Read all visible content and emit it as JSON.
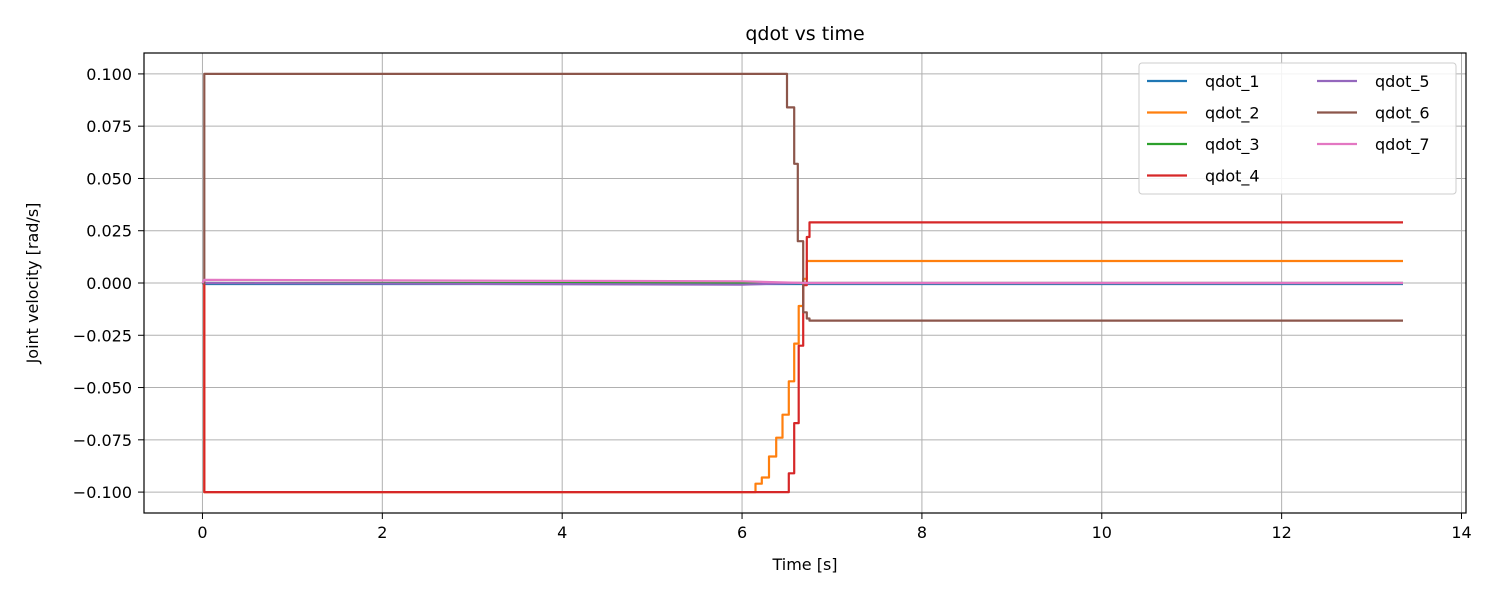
{
  "chart_data": {
    "type": "line",
    "title": "qdot vs time",
    "xlabel": "Time [s]",
    "ylabel": "Joint velocity [rad/s]",
    "xlim": [
      -0.65,
      14.05
    ],
    "ylim": [
      -0.11,
      0.11
    ],
    "xticks": [
      0,
      2,
      4,
      6,
      8,
      10,
      12,
      14
    ],
    "yticks": [
      -0.1,
      -0.075,
      -0.05,
      -0.025,
      0.0,
      0.025,
      0.05,
      0.075,
      0.1
    ],
    "ytick_labels": [
      "−0.100",
      "−0.075",
      "−0.050",
      "−0.025",
      "0.000",
      "0.025",
      "0.050",
      "0.075",
      "0.100"
    ],
    "grid": true,
    "legend": {
      "placement": "top-right",
      "columns": 2
    },
    "series": [
      {
        "name": "qdot_1",
        "color": "#1f77b4",
        "x": [
          0,
          0.02,
          13.35
        ],
        "y": [
          0,
          -0.0005,
          -0.0005
        ]
      },
      {
        "name": "qdot_2",
        "color": "#ff7f0e",
        "x": [
          0,
          0.02,
          0.02,
          6.15,
          6.15,
          6.22,
          6.22,
          6.3,
          6.3,
          6.38,
          6.38,
          6.45,
          6.45,
          6.52,
          6.52,
          6.58,
          6.58,
          6.63,
          6.63,
          6.68,
          6.68,
          6.72,
          6.72,
          13.35
        ],
        "y": [
          0,
          0,
          -0.1,
          -0.1,
          -0.096,
          -0.096,
          -0.093,
          -0.093,
          -0.083,
          -0.083,
          -0.074,
          -0.074,
          -0.063,
          -0.063,
          -0.047,
          -0.047,
          -0.029,
          -0.029,
          -0.011,
          -0.011,
          0.002,
          0.002,
          0.0105,
          0.0105
        ]
      },
      {
        "name": "qdot_3",
        "color": "#2ca02c",
        "x": [
          0,
          13.35
        ],
        "y": [
          0,
          0
        ]
      },
      {
        "name": "qdot_4",
        "color": "#d62728",
        "x": [
          0,
          0.02,
          0.02,
          6.52,
          6.52,
          6.58,
          6.58,
          6.63,
          6.63,
          6.68,
          6.68,
          6.72,
          6.72,
          6.75,
          6.75,
          13.35
        ],
        "y": [
          0,
          0,
          -0.1,
          -0.1,
          -0.091,
          -0.091,
          -0.067,
          -0.067,
          -0.03,
          -0.03,
          -0.001,
          -0.001,
          0.022,
          0.022,
          0.029,
          0.029
        ]
      },
      {
        "name": "qdot_5",
        "color": "#9467bd",
        "x": [
          0,
          6.0,
          6.6,
          13.35
        ],
        "y": [
          0,
          -0.0008,
          0,
          0
        ]
      },
      {
        "name": "qdot_6",
        "color": "#8c564b",
        "x": [
          0,
          0.02,
          0.02,
          6.5,
          6.5,
          6.58,
          6.58,
          6.62,
          6.62,
          6.68,
          6.68,
          6.72,
          6.72,
          6.75,
          6.75,
          13.35
        ],
        "y": [
          0,
          0,
          0.1,
          0.1,
          0.084,
          0.084,
          0.057,
          0.057,
          0.02,
          0.02,
          -0.014,
          -0.014,
          -0.017,
          -0.017,
          -0.018,
          -0.018
        ]
      },
      {
        "name": "qdot_7",
        "color": "#e377c2",
        "x": [
          0,
          0.02,
          6.0,
          6.7,
          13.35
        ],
        "y": [
          0,
          0.0015,
          0.0008,
          0,
          0
        ]
      }
    ]
  }
}
